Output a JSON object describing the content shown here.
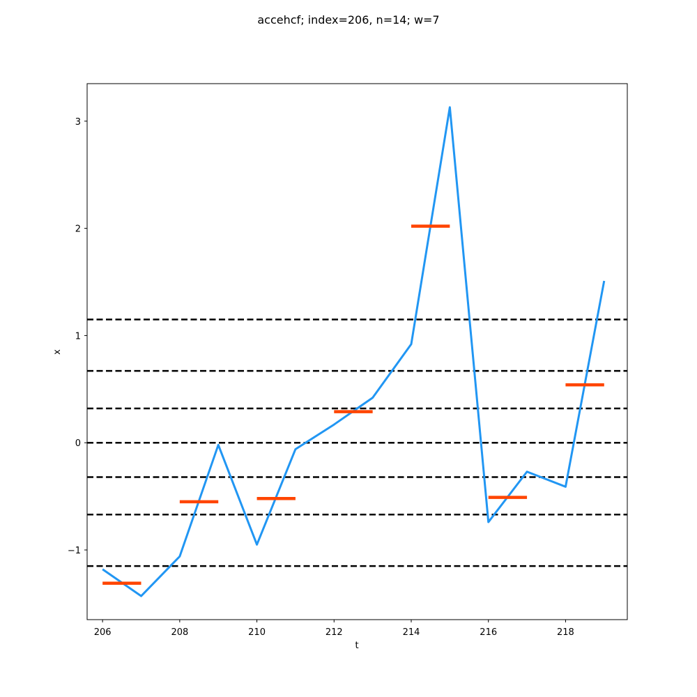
{
  "chart_data": {
    "type": "line",
    "title": "accehcf; index=206, n=14; w=7",
    "xlabel": "t",
    "ylabel": "x",
    "xlim": [
      205.6,
      219.6
    ],
    "ylim": [
      -1.65,
      3.35
    ],
    "xticks": [
      206,
      208,
      210,
      212,
      214,
      216,
      218
    ],
    "yticks": [
      -1,
      0,
      1,
      2,
      3
    ],
    "ytick_labels": [
      "−1",
      "0",
      "1",
      "2",
      "3"
    ],
    "grid": false,
    "series": [
      {
        "color": "#2196f3",
        "x": [
          206,
          207,
          208,
          209,
          210,
          211,
          212,
          213,
          214,
          215,
          216,
          217,
          218,
          219
        ],
        "y": [
          -1.18,
          -1.43,
          -1.06,
          -0.02,
          -0.95,
          -0.06,
          0.17,
          0.42,
          0.92,
          3.13,
          -0.74,
          -0.27,
          -0.41,
          1.51
        ]
      }
    ],
    "segments": {
      "color": "#ff4500",
      "items": [
        {
          "x0": 206,
          "x1": 207,
          "y": -1.31
        },
        {
          "x0": 208,
          "x1": 209,
          "y": -0.55
        },
        {
          "x0": 210,
          "x1": 211,
          "y": -0.52
        },
        {
          "x0": 212,
          "x1": 213,
          "y": 0.29
        },
        {
          "x0": 214,
          "x1": 215,
          "y": 2.02
        },
        {
          "x0": 216,
          "x1": 217,
          "y": -0.51
        },
        {
          "x0": 218,
          "x1": 219,
          "y": 0.54
        }
      ]
    },
    "hlines": {
      "color": "#000000",
      "values": [
        -1.15,
        -0.67,
        -0.32,
        0,
        0.32,
        0.67,
        1.15
      ]
    }
  }
}
